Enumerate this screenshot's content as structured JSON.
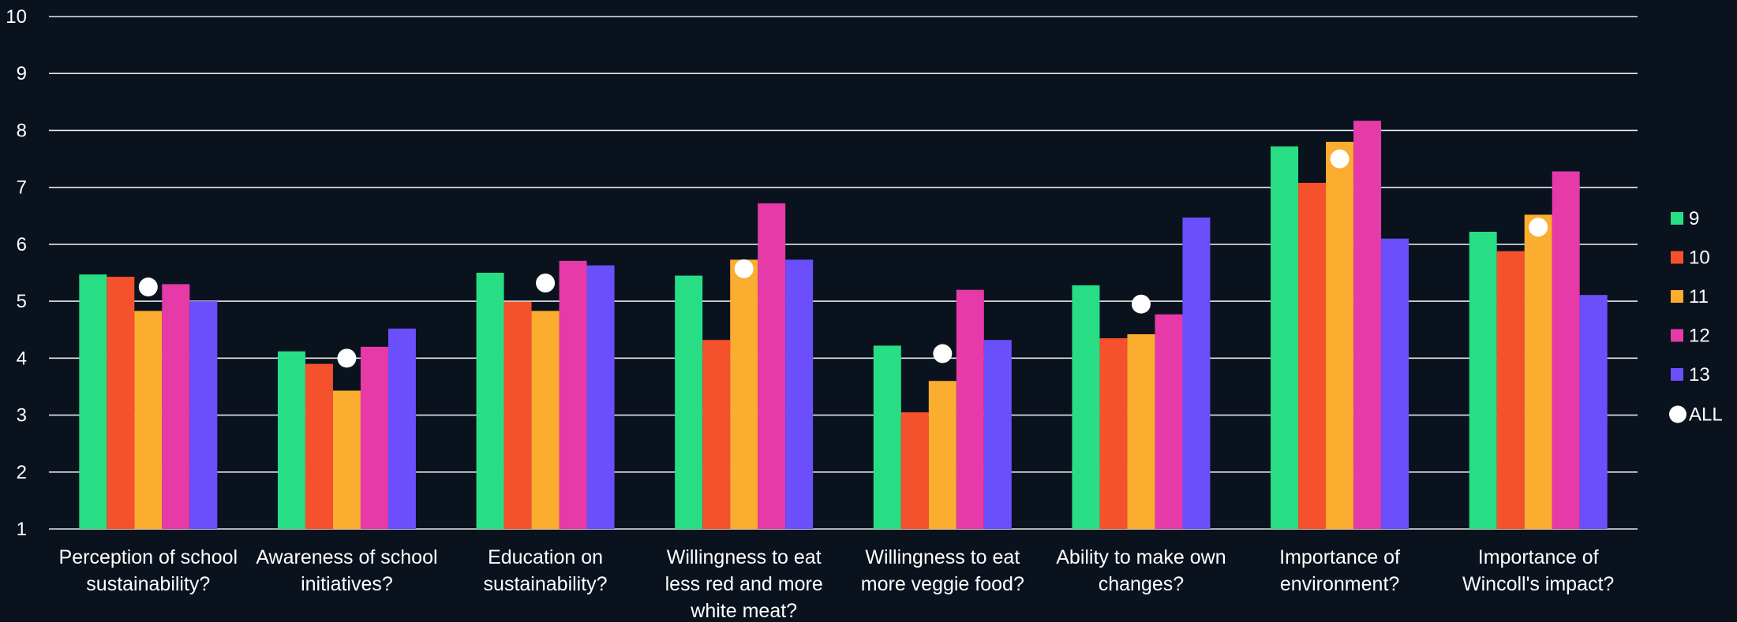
{
  "chart_data": {
    "type": "bar",
    "categories": [
      "Perception of school sustainability?",
      "Awareness of school initiatives?",
      "Education on sustainability?",
      "Willingness to eat less red and more white meat?",
      "Willingness to eat more veggie food?",
      "Ability to make own changes?",
      "Importance of environment?",
      "Importance of Wincoll's impact?"
    ],
    "category_label_lines": [
      [
        "Perception of school",
        "sustainability?"
      ],
      [
        "Awareness of school",
        "initiatives?"
      ],
      [
        "Education on",
        "sustainability?"
      ],
      [
        "Willingness to eat",
        "less red and more",
        "white meat?"
      ],
      [
        "Willingness to eat",
        "more veggie food?"
      ],
      [
        "Ability to make own",
        "changes?"
      ],
      [
        "Importance of",
        "environment?"
      ],
      [
        "Importance of",
        "Wincoll's impact?"
      ]
    ],
    "series": [
      {
        "name": "9",
        "color": "#27de85",
        "values": [
          5.47,
          4.12,
          5.5,
          5.45,
          4.22,
          5.28,
          7.72,
          6.22
        ]
      },
      {
        "name": "10",
        "color": "#f5512d",
        "values": [
          5.43,
          3.9,
          4.99,
          4.32,
          3.05,
          4.35,
          7.08,
          5.88
        ]
      },
      {
        "name": "11",
        "color": "#fbad2f",
        "values": [
          4.83,
          3.43,
          4.83,
          5.73,
          3.6,
          4.42,
          7.8,
          6.52
        ]
      },
      {
        "name": "12",
        "color": "#e63aa8",
        "values": [
          5.3,
          4.2,
          5.71,
          6.72,
          5.2,
          4.77,
          8.17,
          7.28
        ]
      },
      {
        "name": "13",
        "color": "#6a4ffb",
        "values": [
          5.0,
          4.52,
          5.63,
          5.73,
          4.32,
          6.47,
          6.1,
          5.11
        ]
      }
    ],
    "overlay_series": {
      "name": "ALL",
      "color": "#ffffff",
      "marker": "circle",
      "values": [
        5.25,
        4.0,
        5.32,
        5.57,
        4.08,
        4.95,
        7.5,
        6.3
      ]
    },
    "ylim": [
      1,
      10
    ],
    "y_ticks": [
      1,
      2,
      3,
      4,
      5,
      6,
      7,
      8,
      9,
      10
    ],
    "title": "",
    "xlabel": "",
    "ylabel": "",
    "grid": true,
    "legend_position": "right"
  }
}
